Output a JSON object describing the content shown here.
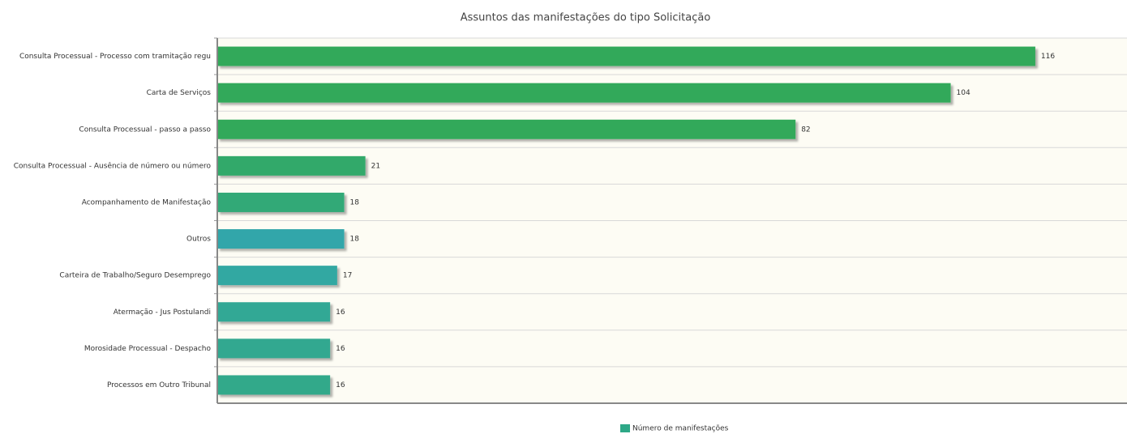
{
  "chart_data": {
    "type": "bar",
    "orientation": "horizontal",
    "title": "Assuntos das manifestações do tipo Solicitação",
    "categories": [
      "Consulta Processual - Processo com tramitação regu",
      "Carta de Serviços",
      "Consulta Processual - passo a passo",
      "Consulta Processual - Ausência de número ou número",
      "Acompanhamento de Manifestação",
      "Outros",
      "Carteira de Trabalho/Seguro Desemprego",
      "Atermação - Jus Postulandi",
      "Morosidade Processual - Despacho",
      "Processos em Outro Tribunal"
    ],
    "series": [
      {
        "name": "Número de manifestações",
        "color": "#2ea887",
        "values": [
          116,
          104,
          82,
          21,
          18,
          18,
          17,
          16,
          16,
          16
        ],
        "colors": [
          "#31a95a",
          "#31a95a",
          "#31a95a",
          "#31a96a",
          "#31a977",
          "#31a6aa",
          "#31a8a2",
          "#31a895",
          "#31a890",
          "#31a98a"
        ]
      }
    ],
    "xlim": [
      0,
      129
    ],
    "legend": "bottom"
  }
}
